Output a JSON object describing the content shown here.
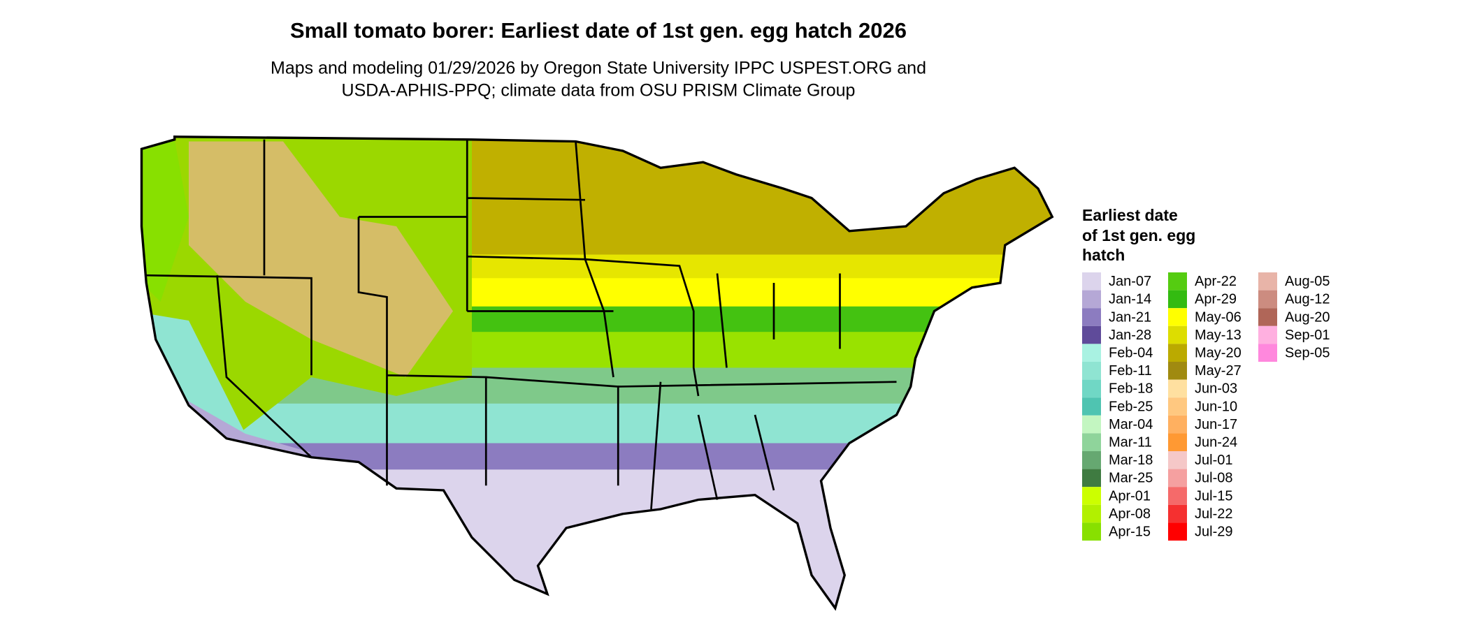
{
  "header": {
    "title": "Small tomato borer: Earliest date of 1st gen. egg hatch 2026",
    "subtitle": [
      "Maps and modeling 01/29/2026 by Oregon State University IPPC USPEST.ORG and",
      "USDA-APHIS-PPQ; climate data from OSU PRISM Climate Group"
    ]
  },
  "legend": {
    "title": [
      "Earliest date",
      "of 1st gen. egg",
      "hatch"
    ],
    "columns": [
      [
        {
          "label": "Jan-07",
          "color": "#dcd4ec"
        },
        {
          "label": "Jan-14",
          "color": "#b5a8d6"
        },
        {
          "label": "Jan-21",
          "color": "#8c7cc0"
        },
        {
          "label": "Jan-28",
          "color": "#5f4b9a"
        },
        {
          "label": "Feb-04",
          "color": "#a9f2e2"
        },
        {
          "label": "Feb-11",
          "color": "#8fe4d2"
        },
        {
          "label": "Feb-18",
          "color": "#70d7c5"
        },
        {
          "label": "Feb-25",
          "color": "#4fc4b1"
        },
        {
          "label": "Mar-04",
          "color": "#c3f6c1"
        },
        {
          "label": "Mar-11",
          "color": "#8fd49b"
        },
        {
          "label": "Mar-18",
          "color": "#66a871"
        },
        {
          "label": "Mar-25",
          "color": "#3f7b41"
        },
        {
          "label": "Apr-01",
          "color": "#ccff00"
        },
        {
          "label": "Apr-08",
          "color": "#b2f000"
        },
        {
          "label": "Apr-15",
          "color": "#88e000"
        }
      ],
      [
        {
          "label": "Apr-22",
          "color": "#55cc11"
        },
        {
          "label": "Apr-29",
          "color": "#33bb11"
        },
        {
          "label": "May-06",
          "color": "#ffff00"
        },
        {
          "label": "May-13",
          "color": "#dddd00"
        },
        {
          "label": "May-20",
          "color": "#bbaa00"
        },
        {
          "label": "May-27",
          "color": "#a08a10"
        },
        {
          "label": "Jun-03",
          "color": "#ffe0a0"
        },
        {
          "label": "Jun-10",
          "color": "#ffc880"
        },
        {
          "label": "Jun-17",
          "color": "#ffb060"
        },
        {
          "label": "Jun-24",
          "color": "#ff9933"
        },
        {
          "label": "Jul-01",
          "color": "#f5c8c8"
        },
        {
          "label": "Jul-08",
          "color": "#f5a0a0"
        },
        {
          "label": "Jul-15",
          "color": "#f56a6a"
        },
        {
          "label": "Jul-22",
          "color": "#f53030"
        },
        {
          "label": "Jul-29",
          "color": "#ff0000"
        }
      ],
      [
        {
          "label": "Aug-05",
          "color": "#e8b4a8"
        },
        {
          "label": "Aug-12",
          "color": "#cc8c80"
        },
        {
          "label": "Aug-20",
          "color": "#b06658"
        },
        {
          "label": "Sep-01",
          "color": "#ffb0e0"
        },
        {
          "label": "Sep-05",
          "color": "#ff88dd"
        }
      ]
    ]
  }
}
